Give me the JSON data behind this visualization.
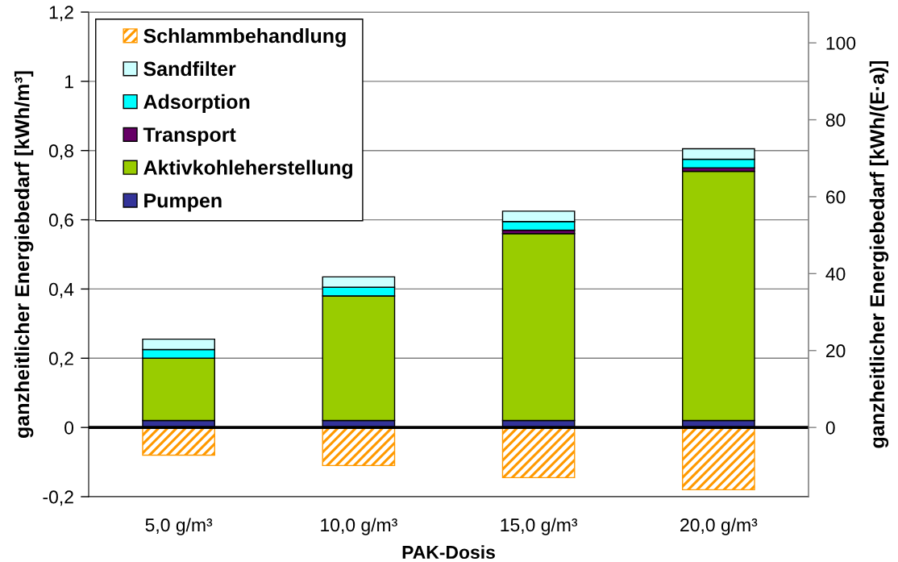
{
  "chart_data": {
    "type": "bar",
    "stacked": true,
    "categories": [
      "5,0 g/m³",
      "10,0 g/m³",
      "15,0 g/m³",
      "20,0 g/m³"
    ],
    "series": [
      {
        "name": "Pumpen",
        "color": "#333399",
        "values": [
          0.02,
          0.02,
          0.02,
          0.02
        ]
      },
      {
        "name": "Aktivkohleherstellung",
        "color": "#99cc00",
        "values": [
          0.18,
          0.36,
          0.54,
          0.72
        ]
      },
      {
        "name": "Transport",
        "color": "#660066",
        "values": [
          0,
          0,
          0.01,
          0.01
        ]
      },
      {
        "name": "Adsorption",
        "color": "#00ffff",
        "values": [
          0.025,
          0.025,
          0.025,
          0.025
        ]
      },
      {
        "name": "Sandfilter",
        "color": "#ccffff",
        "values": [
          0.03,
          0.03,
          0.03,
          0.03
        ]
      },
      {
        "name": "Schlammbehandlung",
        "color": "#ff9900",
        "values": [
          -0.08,
          -0.11,
          -0.145,
          -0.18
        ]
      }
    ],
    "xlabel": "PAK-Dosis",
    "ylabel": "ganzheitlicher Energiebedarf [kWh/m³]",
    "y2label": "ganzheitlicher Energiebedarf [kWh/(E·a)]",
    "ylim": [
      -0.2,
      1.2
    ],
    "yticks": [
      {
        "value": -0.2,
        "label": "-0,2"
      },
      0,
      {
        "value": 0.2,
        "label": "0,2"
      },
      {
        "value": 0.4,
        "label": "0,4"
      },
      {
        "value": 0.6,
        "label": "0,6"
      },
      {
        "value": 0.8,
        "label": "0,8"
      },
      1,
      {
        "value": 1.2,
        "label": "1,2"
      }
    ],
    "y2lim": [
      -18,
      108
    ],
    "y2ticks": [
      0,
      20,
      40,
      60,
      80,
      100
    ],
    "grid": "y",
    "legend": "top left",
    "ref_lines": [
      {
        "axis": "y",
        "value": 0,
        "color": "#000000"
      }
    ]
  }
}
